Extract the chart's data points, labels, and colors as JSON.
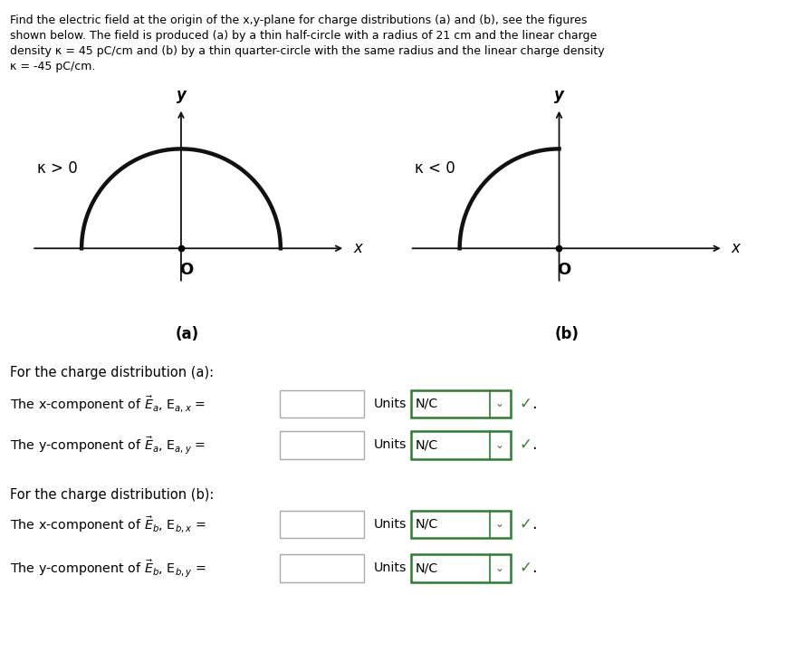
{
  "fig_width": 8.79,
  "fig_height": 7.31,
  "bg_color": "#ffffff",
  "text_color": "#000000",
  "arc_color": "#111111",
  "axis_color": "#111111",
  "green_color": "#2e7d32",
  "input_border_color": "#aaaaaa",
  "units_border_color": "#2e7d32",
  "kappa_a_label": "κ > 0",
  "kappa_b_label": "κ < 0",
  "label_a": "(a)",
  "label_b": "(b)",
  "origin_label": "O",
  "x_label": "x",
  "y_label": "y",
  "check_mark": "✓",
  "dist_a_header": "For the charge distribution (a):",
  "dist_b_header": "For the charge distribution (b):",
  "line1_ea": "The x-component of $\\vec{E}_a$, E$_{a,x}$ =",
  "line2_ea": "The y-component of $\\vec{E}_a$, E$_{a,y}$ =",
  "line1_eb": "The x-component of $\\vec{E}_b$, E$_{b,x}$ =",
  "line2_eb": "The y-component of $\\vec{E}_b$, E$_{b,y}$ ="
}
